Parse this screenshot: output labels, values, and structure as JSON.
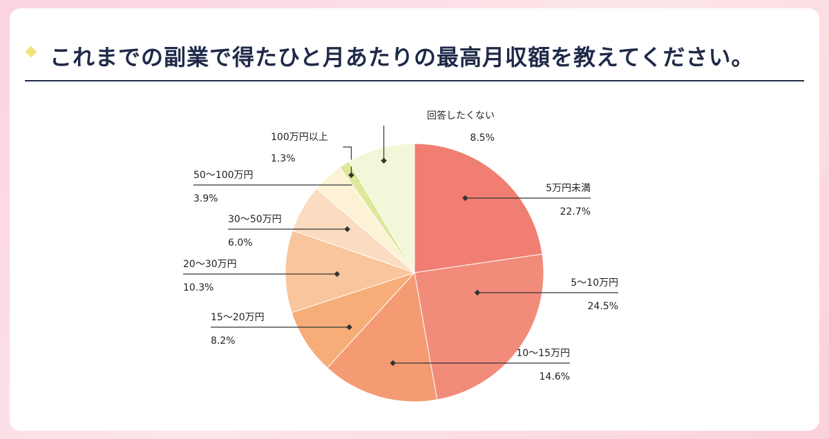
{
  "title": "これまでの副業で得たひと月あたりの最高月収額を教えてください。",
  "chart_data": {
    "type": "pie",
    "slices": [
      {
        "label": "5万円未満",
        "value": 22.7,
        "pct_text": "22.7%",
        "color": "#f07e72"
      },
      {
        "label": "5〜10万円",
        "value": 24.5,
        "pct_text": "24.5%",
        "color": "#f28c7a"
      },
      {
        "label": "10〜15万円",
        "value": 14.6,
        "pct_text": "14.6%",
        "color": "#f49b73"
      },
      {
        "label": "15〜20万円",
        "value": 8.2,
        "pct_text": "8.2%",
        "color": "#f6ad78"
      },
      {
        "label": "20〜30万円",
        "value": 10.3,
        "pct_text": "10.3%",
        "color": "#f9c59c"
      },
      {
        "label": "30〜50万円",
        "value": 6.0,
        "pct_text": "6.0%",
        "color": "#fbdcc0"
      },
      {
        "label": "50〜100万円",
        "value": 3.9,
        "pct_text": "3.9%",
        "color": "#fdf2d6"
      },
      {
        "label": "100万円以上",
        "value": 1.3,
        "pct_text": "1.3%",
        "color": "#dde89a"
      },
      {
        "label": "回答したくない",
        "value": 8.5,
        "pct_text": "8.5%",
        "color": "#f2f7d9"
      }
    ]
  }
}
